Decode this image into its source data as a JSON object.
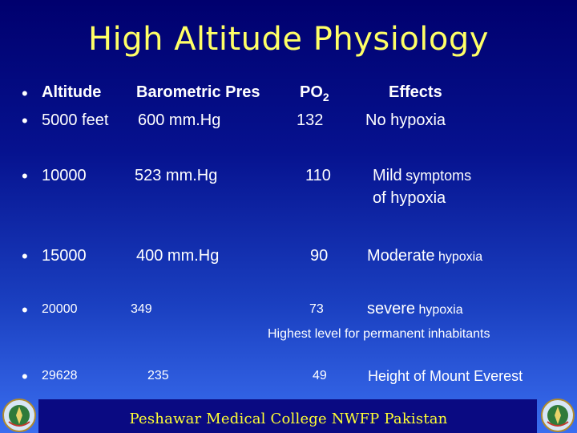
{
  "title": "High Altitude Physiology",
  "header": {
    "altitude": "Altitude",
    "pressure": "Barometric Pres",
    "po2_main": "PO",
    "po2_sub": "2",
    "effects": "Effects"
  },
  "rows": [
    {
      "altitude": "5000 feet",
      "pressure": "600 mm.Hg",
      "po2": "132",
      "effect_a": "No hypoxia",
      "effect_b": "",
      "effect_c": ""
    },
    {
      "altitude": "10000",
      "pressure": "523 mm.Hg",
      "po2": "110",
      "effect_a": "Mild",
      "effect_b": "symptoms",
      "effect_c": "of hypoxia"
    },
    {
      "altitude": "15000",
      "pressure": "400 mm.Hg",
      "po2": "90",
      "effect_a": "Moderate",
      "effect_b": "hypoxia",
      "effect_c": ""
    },
    {
      "altitude": "20000",
      "pressure": "349",
      "po2": "73",
      "effect_a": "severe",
      "effect_b": "hypoxia",
      "effect_c": ""
    },
    {
      "altitude": "29628",
      "pressure": "235",
      "po2": "49",
      "effect_a": "Height of Mount Everest",
      "effect_b": "",
      "effect_c": ""
    }
  ],
  "note": "Highest level for permanent inhabitants",
  "bullet": "•",
  "footer": "Peshawar Medical College NWFP Pakistan",
  "colors": {
    "title": "#ffff66",
    "footer_text": "#ffff33",
    "footer_band": "#0a0a82"
  }
}
